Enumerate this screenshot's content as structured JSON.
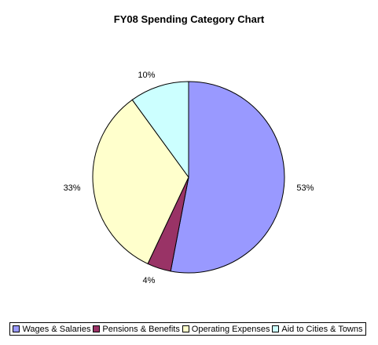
{
  "chart_data": {
    "type": "pie",
    "title": "FY08 Spending Category Chart",
    "series": [
      {
        "name": "Wages & Salaries",
        "value": 53,
        "label": "53%",
        "color": "#9999ff"
      },
      {
        "name": "Pensions & Benefits",
        "value": 4,
        "label": "4%",
        "color": "#993366"
      },
      {
        "name": "Operating Expenses",
        "value": 33,
        "label": "33%",
        "color": "#ffffcc"
      },
      {
        "name": "Aid to Cities & Towns",
        "value": 10,
        "label": "10%",
        "color": "#ccffff"
      }
    ],
    "start_angle": "12 o'clock",
    "direction": "clockwise",
    "legend_position": "bottom"
  }
}
